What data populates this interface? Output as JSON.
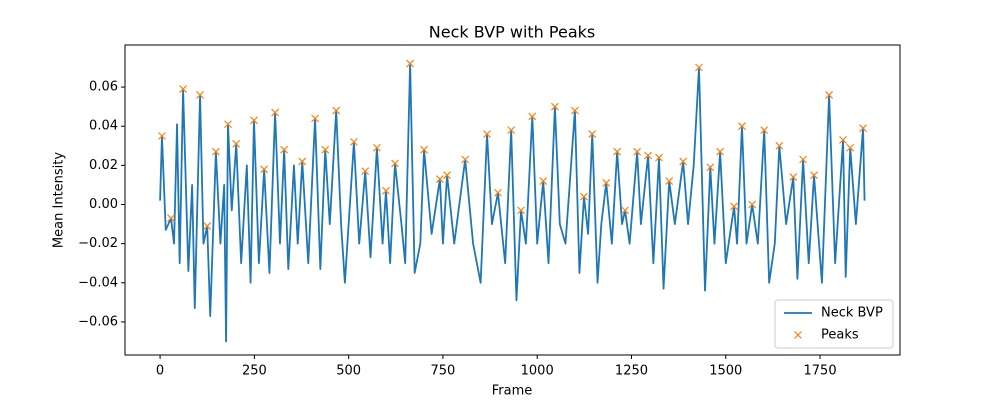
{
  "chart_data": {
    "type": "line",
    "title": "Neck BVP with Peaks",
    "x_label": "Frame",
    "y_label": "Mean Intensity",
    "xlim": [
      -93,
      1962
    ],
    "ylim": [
      -0.0769,
      0.0815
    ],
    "xticks": [
      0,
      250,
      500,
      750,
      1000,
      1250,
      1500,
      1750
    ],
    "yticks": [
      {
        "value": -0.06,
        "label": "−0.06"
      },
      {
        "value": -0.04,
        "label": "−0.04"
      },
      {
        "value": -0.02,
        "label": "−0.02"
      },
      {
        "value": 0,
        "label": "0.00"
      },
      {
        "value": 0.02,
        "label": "0.02"
      },
      {
        "value": 0.04,
        "label": "0.04"
      },
      {
        "value": 0.06,
        "label": "0.06"
      }
    ],
    "legend": "lower right",
    "series": [
      {
        "name": "Neck BVP",
        "color": "#1f77b4",
        "marker": "line",
        "x": [
          0,
          5,
          15,
          29,
          37,
          45,
          52,
          61,
          75,
          85,
          92,
          106,
          115,
          125,
          133,
          148,
          160,
          170,
          175,
          180,
          190,
          202,
          215,
          230,
          240,
          249,
          262,
          276,
          290,
          305,
          318,
          329,
          340,
          355,
          365,
          377,
          393,
          411,
          425,
          438,
          450,
          467,
          480,
          490,
          514,
          528,
          544,
          558,
          575,
          590,
          599,
          610,
          623,
          640,
          650,
          663,
          675,
          690,
          700,
          720,
          742,
          750,
          761,
          780,
          809,
          830,
          850,
          867,
          880,
          896,
          915,
          931,
          945,
          957,
          970,
          987,
          1000,
          1016,
          1030,
          1047,
          1060,
          1075,
          1100,
          1112,
          1124,
          1135,
          1146,
          1160,
          1170,
          1183,
          1198,
          1212,
          1225,
          1233,
          1245,
          1265,
          1275,
          1294,
          1308,
          1323,
          1335,
          1350,
          1365,
          1387,
          1400,
          1415,
          1429,
          1445,
          1459,
          1470,
          1485,
          1500,
          1522,
          1530,
          1543,
          1555,
          1570,
          1585,
          1602,
          1615,
          1630,
          1642,
          1660,
          1679,
          1690,
          1705,
          1720,
          1734,
          1755,
          1774,
          1790,
          1811,
          1818,
          1830,
          1845,
          1864,
          1868
        ],
        "values": [
          0.002,
          0.035,
          -0.013,
          -0.007,
          -0.02,
          0.041,
          -0.03,
          0.059,
          -0.034,
          0.01,
          -0.053,
          0.056,
          -0.02,
          -0.011,
          -0.057,
          0.027,
          -0.02,
          0.01,
          -0.07,
          0.041,
          -0.003,
          0.031,
          -0.03,
          0.02,
          -0.04,
          0.043,
          -0.03,
          0.018,
          -0.035,
          0.047,
          -0.02,
          0.028,
          -0.033,
          0.02,
          -0.02,
          0.022,
          -0.03,
          0.044,
          -0.033,
          0.028,
          -0.01,
          0.048,
          -0.01,
          -0.04,
          0.032,
          -0.02,
          0.017,
          -0.027,
          0.029,
          -0.02,
          0.007,
          -0.03,
          0.021,
          -0.01,
          -0.03,
          0.072,
          -0.035,
          -0.02,
          0.028,
          -0.015,
          0.013,
          -0.02,
          0.015,
          -0.02,
          0.023,
          -0.02,
          -0.04,
          0.036,
          -0.01,
          0.006,
          -0.03,
          0.038,
          -0.049,
          -0.003,
          -0.02,
          0.045,
          -0.02,
          0.012,
          -0.03,
          0.05,
          -0.01,
          -0.02,
          0.048,
          -0.035,
          0.004,
          -0.015,
          0.036,
          -0.04,
          -0.01,
          0.011,
          -0.02,
          0.027,
          -0.01,
          -0.003,
          -0.02,
          0.027,
          -0.01,
          0.025,
          -0.03,
          0.024,
          -0.043,
          0.012,
          -0.01,
          0.022,
          -0.01,
          0.02,
          0.07,
          -0.044,
          0.019,
          -0.02,
          0.027,
          -0.03,
          -0.001,
          -0.02,
          0.04,
          -0.02,
          0,
          -0.02,
          0.038,
          -0.04,
          -0.02,
          0.03,
          -0.01,
          0.014,
          -0.038,
          0.023,
          -0.03,
          0.015,
          -0.04,
          0.056,
          -0.03,
          0.033,
          -0.037,
          0.029,
          -0.01,
          0.039,
          0.002
        ]
      },
      {
        "name": "Peaks",
        "color": "#ff7f0e",
        "marker": "x",
        "x": [
          5,
          29,
          61,
          106,
          125,
          148,
          180,
          202,
          249,
          276,
          305,
          329,
          377,
          411,
          438,
          467,
          514,
          544,
          575,
          599,
          623,
          663,
          700,
          742,
          761,
          809,
          867,
          896,
          931,
          957,
          987,
          1016,
          1047,
          1100,
          1124,
          1146,
          1183,
          1212,
          1233,
          1265,
          1294,
          1323,
          1350,
          1387,
          1429,
          1459,
          1485,
          1522,
          1543,
          1570,
          1602,
          1642,
          1679,
          1705,
          1734,
          1774,
          1811,
          1830,
          1864
        ],
        "values": [
          0.035,
          -0.007,
          0.059,
          0.056,
          -0.011,
          0.027,
          0.041,
          0.031,
          0.043,
          0.018,
          0.047,
          0.028,
          0.022,
          0.044,
          0.028,
          0.048,
          0.032,
          0.017,
          0.029,
          0.007,
          0.021,
          0.072,
          0.028,
          0.013,
          0.015,
          0.023,
          0.036,
          0.006,
          0.038,
          -0.003,
          0.045,
          0.012,
          0.05,
          0.048,
          0.004,
          0.036,
          0.011,
          0.027,
          -0.003,
          0.027,
          0.025,
          0.024,
          0.012,
          0.022,
          0.07,
          0.019,
          0.027,
          -0.001,
          0.04,
          0,
          0.038,
          0.03,
          0.014,
          0.023,
          0.015,
          0.056,
          0.033,
          0.029,
          0.039
        ]
      }
    ]
  }
}
